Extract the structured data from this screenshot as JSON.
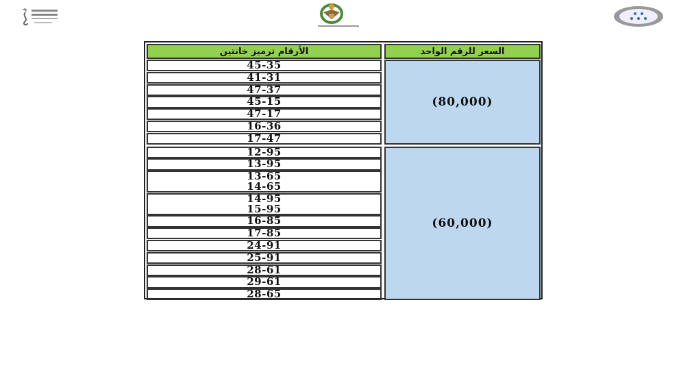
{
  "logos": {
    "left": "جائزة التحول إلى الحكومة الإلكترونية",
    "center": "القوات المسلحة الأردنية",
    "right": "seal-logo"
  },
  "table": {
    "headers": {
      "codes": "الأرقام ترميز خانتين",
      "price": "السعر  للرقم الواحد"
    },
    "groups": [
      {
        "price": "(80,000)",
        "rows": [
          [
            "45-35"
          ],
          [
            "41-31"
          ],
          [
            "47-37"
          ],
          [
            "45-15"
          ],
          [
            "47-17"
          ],
          [
            "16-36"
          ],
          [
            "17-47"
          ]
        ]
      },
      {
        "price": "(60,000)",
        "rows": [
          [
            "12-95"
          ],
          [
            "13-95"
          ],
          [
            "13-65",
            "14-65"
          ],
          [
            "14-95",
            "15-95"
          ],
          [
            "16-85"
          ],
          [
            "17-85"
          ],
          [
            "24-91"
          ],
          [
            "25-91"
          ],
          [
            "28-61"
          ],
          [
            "29-61"
          ],
          [
            "28-65"
          ]
        ]
      }
    ],
    "colors": {
      "header": "#92d050",
      "price": "#bdd7ee"
    }
  }
}
